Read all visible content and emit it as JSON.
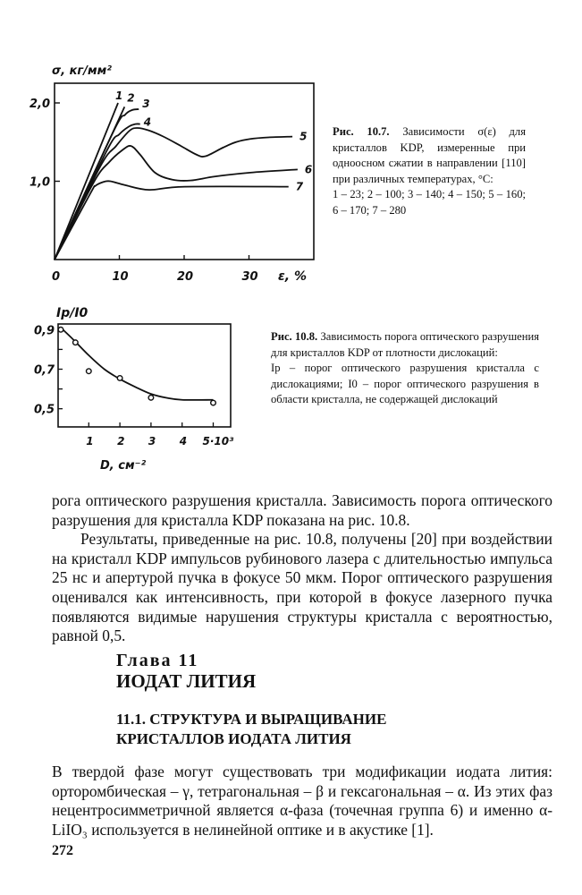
{
  "figures": [
    {
      "caption_label": "Рис. 10.7.",
      "caption_text": "Зависимости σ(ε) для кристаллов KDP, измеренные при одноосном сжатии в направлении [110] при различных температурах, °C:",
      "caption_legend": "1 – 23; 2 – 100; 3 – 140; 4 – 150; 5 – 160; 6 – 170; 7 – 280"
    },
    {
      "caption_label": "Рис. 10.8.",
      "caption_text": "Зависимость порога оптического разрушения для кристаллов KDP от плотности дислокаций:",
      "caption_legend": "Iр – порог оптического разрушения кристалла с дислокациями; I0 – порог оптического разрушения в области кристалла, не содержащей дислокаций"
    }
  ],
  "chart_data": [
    {
      "type": "line",
      "ylabel": "σ, кг/мм²",
      "xlabel": "ε, %",
      "xlim": [
        0,
        40
      ],
      "ylim": [
        0,
        2.25
      ],
      "xticks": [
        "0",
        "10",
        "20",
        "30"
      ],
      "yticks": [
        "1,0",
        "2,0"
      ],
      "grid": false,
      "series": [
        {
          "name": "1",
          "points": [
            [
              0,
              0
            ],
            [
              9.8,
              2.0
            ]
          ]
        },
        {
          "name": "2",
          "points": [
            [
              0,
              0
            ],
            [
              10.8,
              1.95
            ]
          ]
        },
        {
          "name": "3",
          "points": [
            [
              0,
              0
            ],
            [
              9,
              1.62
            ],
            [
              10.9,
              1.85
            ],
            [
              12,
              1.91
            ],
            [
              13,
              1.92
            ]
          ]
        },
        {
          "name": "4",
          "points": [
            [
              0,
              0
            ],
            [
              8,
              1.38
            ],
            [
              10,
              1.6
            ],
            [
              11.5,
              1.7
            ],
            [
              12.5,
              1.73
            ],
            [
              13.2,
              1.73
            ]
          ]
        },
        {
          "name": "5",
          "points": [
            [
              0,
              0
            ],
            [
              7,
              1.18
            ],
            [
              9.5,
              1.45
            ],
            [
              11.5,
              1.64
            ],
            [
              12.7,
              1.68
            ],
            [
              14.5,
              1.65
            ],
            [
              16.8,
              1.57
            ],
            [
              19.5,
              1.45
            ],
            [
              21.9,
              1.34
            ],
            [
              23.3,
              1.32
            ],
            [
              26,
              1.43
            ],
            [
              28,
              1.5
            ],
            [
              30.2,
              1.54
            ],
            [
              33,
              1.56
            ],
            [
              36.7,
              1.57
            ]
          ]
        },
        {
          "name": "6",
          "points": [
            [
              0,
              0
            ],
            [
              6,
              0.98
            ],
            [
              8.5,
              1.25
            ],
            [
              10.5,
              1.4
            ],
            [
              11.8,
              1.45
            ],
            [
              13.2,
              1.34
            ],
            [
              15.5,
              1.11
            ],
            [
              18.2,
              1.02
            ],
            [
              21,
              1.01
            ],
            [
              24.7,
              1.06
            ],
            [
              30.2,
              1.11
            ],
            [
              37.5,
              1.15
            ]
          ]
        },
        {
          "name": "7",
          "points": [
            [
              0,
              0
            ],
            [
              5.5,
              0.84
            ],
            [
              6.3,
              0.94
            ],
            [
              7.5,
              0.99
            ],
            [
              8.6,
              1.0
            ],
            [
              10.9,
              0.95
            ],
            [
              14.6,
              0.89
            ],
            [
              20.1,
              0.93
            ],
            [
              36.1,
              0.93
            ]
          ]
        }
      ]
    },
    {
      "type": "scatter",
      "ylabel": "Iр/I0",
      "xlabel": "D, см⁻²",
      "xlim": [
        0,
        5.55
      ],
      "ylim": [
        0.41,
        0.93
      ],
      "xticks": [
        "1",
        "2",
        "3",
        "4",
        "5·10³"
      ],
      "yticks": [
        "0,5",
        "0,7",
        "0,9"
      ],
      "grid": false,
      "points": [
        [
          0.1,
          0.9
        ],
        [
          0.57,
          0.835
        ],
        [
          1.0,
          0.69
        ],
        [
          2.0,
          0.655
        ],
        [
          3.0,
          0.556
        ],
        [
          5.0,
          0.53
        ]
      ],
      "fit_curve": [
        [
          0.1,
          0.91
        ],
        [
          0.5,
          0.85
        ],
        [
          1.0,
          0.77
        ],
        [
          1.5,
          0.7
        ],
        [
          2.0,
          0.65
        ],
        [
          2.5,
          0.61
        ],
        [
          3.0,
          0.575
        ],
        [
          3.5,
          0.555
        ],
        [
          4.0,
          0.545
        ],
        [
          5.0,
          0.545
        ]
      ]
    }
  ],
  "body": {
    "para1": "рога оптического разрушения кристалла. Зависимость порога оптического разрушения для кристалла KDP показана на рис. 10.8.",
    "para2": "Результаты, приведенные на рис. 10.8, получены [20] при воздействии на кристалл KDP импульсов рубинового лазера с длительностью импульса 25 нс и апертурой пучка в фокусе 50 мкм. Порог оптического разрушения оценивался как интенсивность, при которой в фокусе лазерного пучка появляются видимые нарушения структуры кристалла с вероятностью, равной 0,5."
  },
  "chapter": {
    "label": "Глава 11",
    "title": "ИОДАТ ЛИТИЯ",
    "section_line1": "11.1. СТРУКТУРА И ВЫРАЩИВАНИЕ",
    "section_line2": "КРИСТАЛЛОВ ИОДАТА ЛИТИЯ"
  },
  "body2": {
    "para": "В твердой фазе могут существовать три модификации иодата лития: орторомбическая – γ, тетрагональная – β и гексагональная – α. Из этих фаз нецентросимметричной является α-фаза (точечная группа 6) и именно α-LiIO₃ используется в нелинейной оптике и в акустике [1]."
  },
  "page_number": "272"
}
